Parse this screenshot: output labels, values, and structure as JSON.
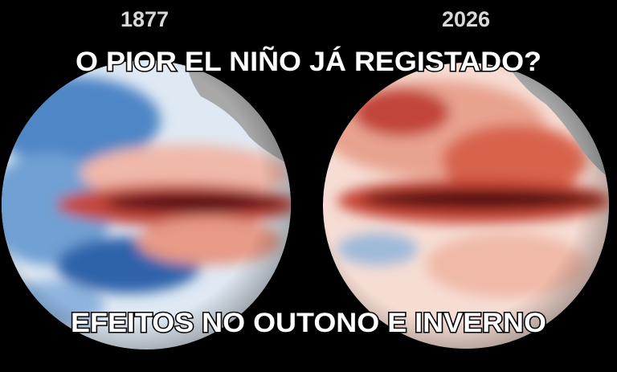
{
  "labels": {
    "left_year": "1877",
    "right_year": "2026"
  },
  "headline": "O PIOR EL NIÑO JÁ REGISTADO?",
  "footer": "EFEITOS NO OUTONO E INVERNO"
}
